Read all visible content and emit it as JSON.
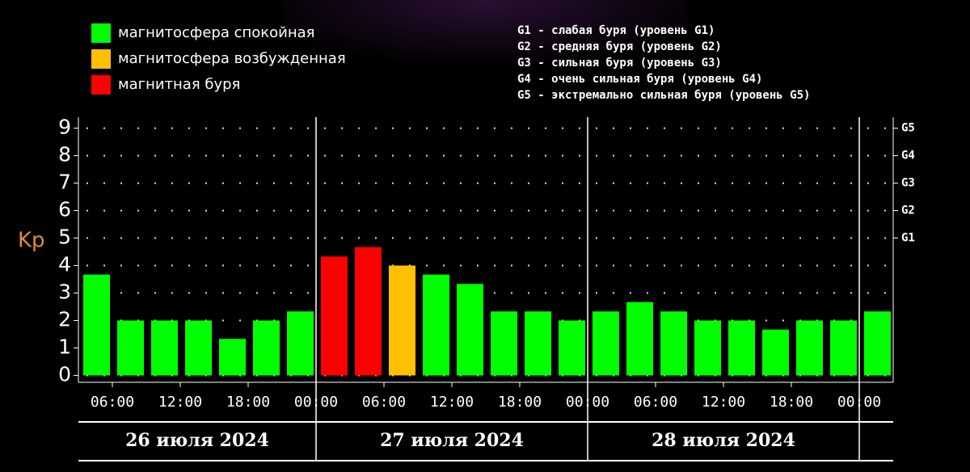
{
  "chart_data": {
    "type": "bar",
    "y_label": "Kp",
    "legend": [
      {
        "name": "магнитосфера спокойная",
        "color": "#00ff00"
      },
      {
        "name": "магнитосфера возбужденная",
        "color": "#ffc000"
      },
      {
        "name": "магнитная буря",
        "color": "#ff0000"
      }
    ],
    "notes": [
      "G1 - слабая буря (уровень G1)",
      "G2 - средняя буря (уровень G2)",
      "G3 - сильная буря (уровень G3)",
      "G4 - очень сильная буря (уровень G4)",
      "G5 - экстремально сильная буря (уровень G5)"
    ],
    "values": [
      3.67,
      2,
      2,
      2,
      1.33,
      2,
      2.33,
      4.33,
      4.67,
      4,
      3.67,
      3.33,
      2.33,
      2.33,
      2,
      2.33,
      2.67,
      2.33,
      2,
      2,
      1.67,
      2,
      2,
      2.33
    ],
    "colors": [
      "#00ff00",
      "#00ff00",
      "#00ff00",
      "#00ff00",
      "#00ff00",
      "#00ff00",
      "#00ff00",
      "#ff0000",
      "#ff0000",
      "#ffc000",
      "#00ff00",
      "#00ff00",
      "#00ff00",
      "#00ff00",
      "#00ff00",
      "#00ff00",
      "#00ff00",
      "#00ff00",
      "#00ff00",
      "#00ff00",
      "#00ff00",
      "#00ff00",
      "#00ff00",
      "#00ff00"
    ],
    "xtick_labels": [
      "06:00",
      "12:00",
      "18:00",
      "00:00",
      "06:00",
      "12:00",
      "18:00",
      "00:00",
      "06:00",
      "12:00",
      "18:00",
      "00:00"
    ],
    "days": [
      "26 июля 2024",
      "27 июля 2024",
      "28 июля 2024"
    ],
    "ylim": [
      -0.25,
      9.4
    ],
    "yticks": [
      0,
      1,
      2,
      3,
      4,
      5,
      6,
      7,
      8,
      9
    ],
    "y2lim": [
      -0.25,
      9.4
    ],
    "y2ticks": [
      {
        "value": 5,
        "label": "G1"
      },
      {
        "value": 6,
        "label": "G2"
      },
      {
        "value": 7,
        "label": "G3"
      },
      {
        "value": 8,
        "label": "G4"
      },
      {
        "value": 9,
        "label": "G5"
      }
    ],
    "grid": true
  }
}
